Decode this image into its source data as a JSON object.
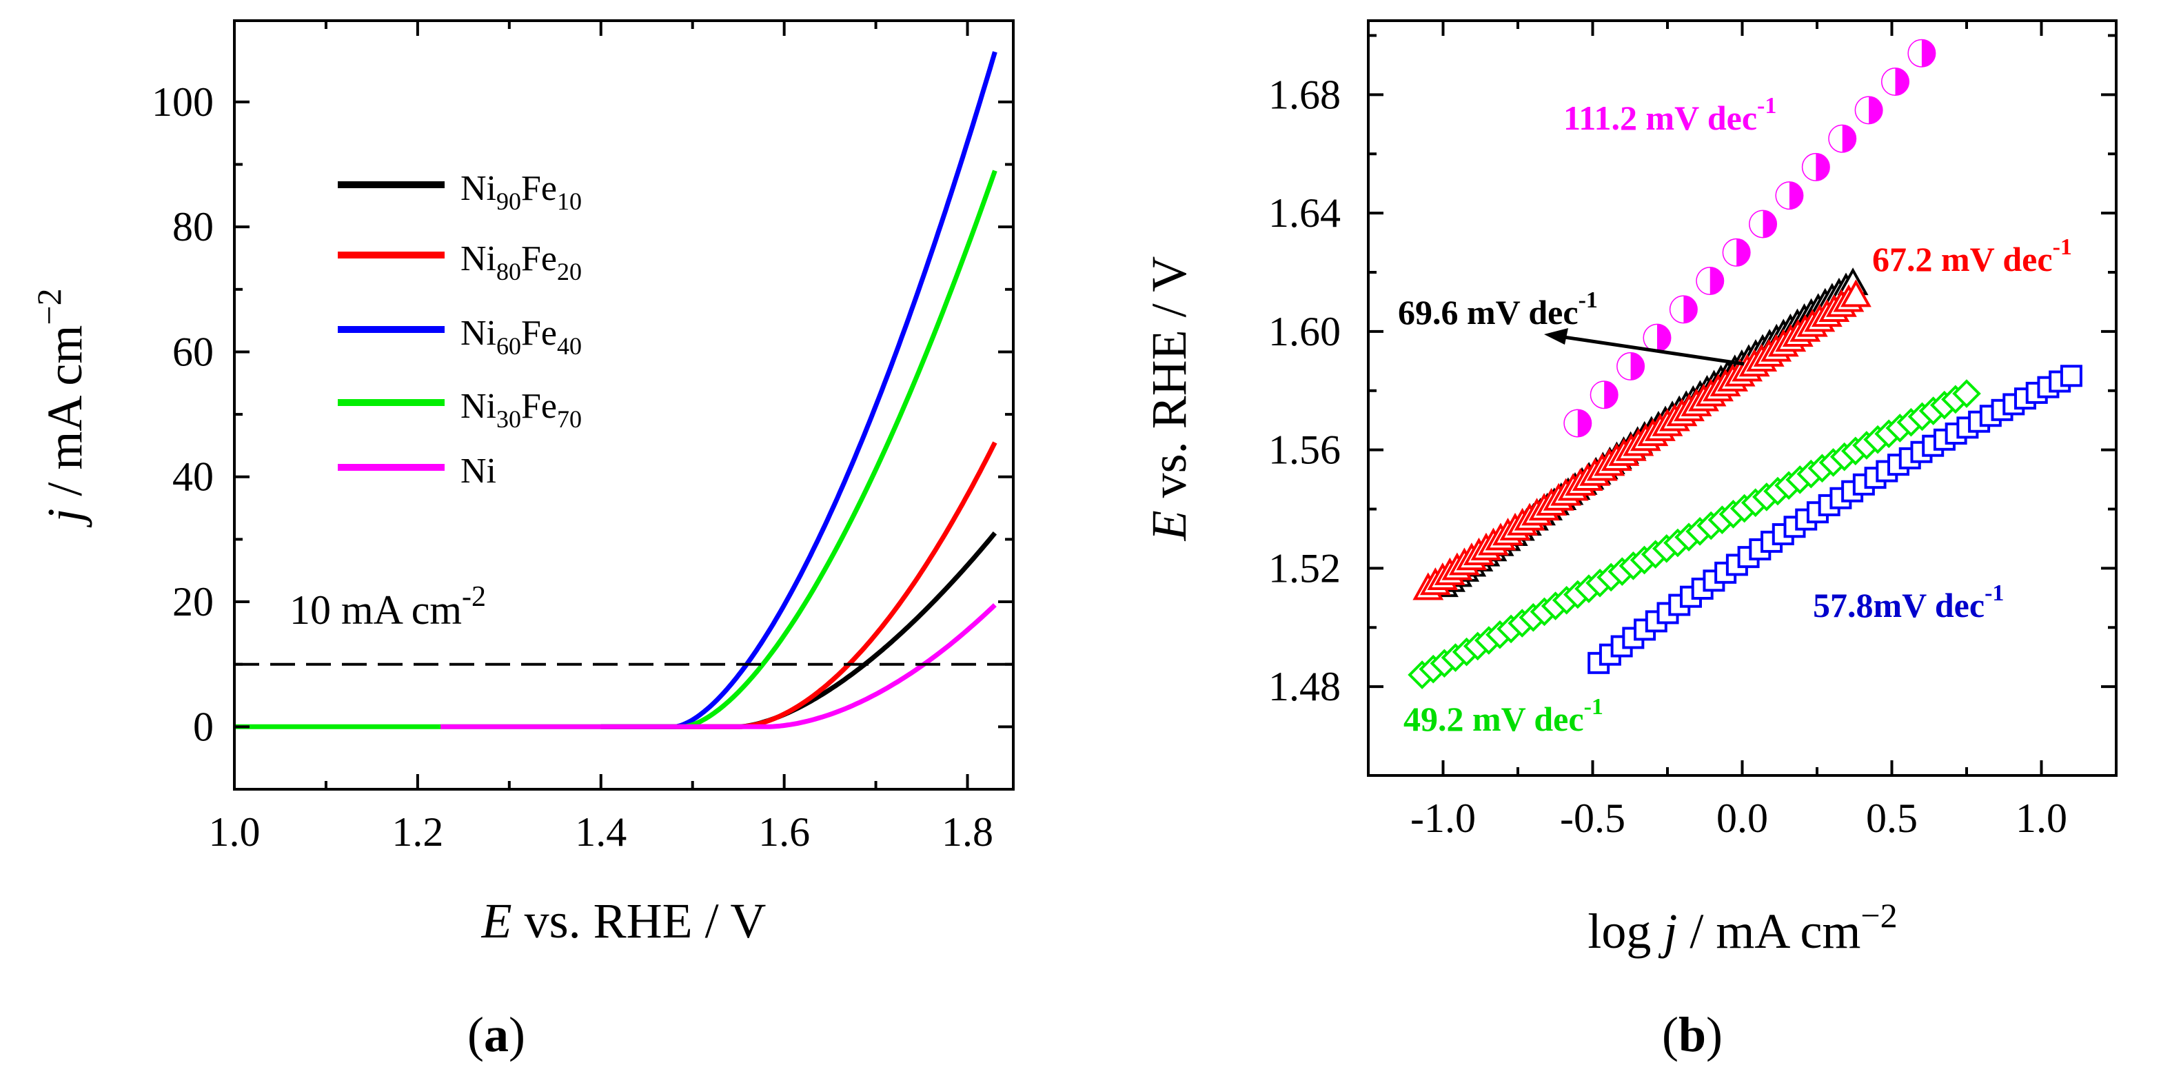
{
  "chart_data": [
    {
      "panel": "(a)",
      "type": "line",
      "panel_label_pre": "(",
      "panel_label_letter": "a",
      "panel_label_post": ")",
      "xlim": [
        1.0,
        1.85
      ],
      "ylim": [
        -10,
        113
      ],
      "xticks": [
        1.0,
        1.2,
        1.4,
        1.6,
        1.8
      ],
      "xtick_labels": [
        "1.0",
        "1.2",
        "1.4",
        "1.6",
        "1.8"
      ],
      "yticks": [
        0,
        20,
        40,
        60,
        80,
        100
      ],
      "ytick_labels": [
        "0",
        "20",
        "40",
        "60",
        "80",
        "100"
      ],
      "xlabel": {
        "italic": "E",
        "rest": " vs. RHE / V"
      },
      "ylabel": {
        "italic": "j",
        "rest": " / mA cm",
        "sup": "−2"
      },
      "reference_line": {
        "y": 10,
        "label": "10 mA cm",
        "label_sup": "-2"
      },
      "legend_position": "upper-left",
      "series": [
        {
          "name": "Ni90Fe10",
          "base": "Ni",
          "sub1": "90",
          "mid": "Fe",
          "sub2": "10",
          "color": "#000000",
          "x_start": 1.4,
          "onset": 1.55,
          "end": 1.83,
          "j_end": 31,
          "exp": 1.6
        },
        {
          "name": "Ni80Fe20",
          "base": "Ni",
          "sub1": "80",
          "mid": "Fe",
          "sub2": "20",
          "color": "#ff0000",
          "x_start": 1.4,
          "onset": 1.55,
          "end": 1.83,
          "j_end": 45.5,
          "exp": 1.8
        },
        {
          "name": "Ni60Fe40",
          "base": "Ni",
          "sub1": "60",
          "mid": "Fe",
          "sub2": "40",
          "color": "#0000ff",
          "x_start": 1.4,
          "onset": 1.48,
          "end": 1.83,
          "j_end": 108,
          "exp": 1.6
        },
        {
          "name": "Ni30Fe70",
          "base": "Ni",
          "sub1": "30",
          "mid": "Fe",
          "sub2": "70",
          "color": "#00ee00",
          "x_start": 1.0,
          "onset": 1.49,
          "end": 1.83,
          "j_end": 89,
          "exp": 1.6
        },
        {
          "name": "Ni",
          "base": "Ni",
          "sub1": "",
          "mid": "",
          "sub2": "",
          "color": "#ff00ff",
          "x_start": 1.225,
          "onset": 1.58,
          "end": 1.83,
          "j_end": 19.5,
          "exp": 1.8
        }
      ]
    },
    {
      "panel": "(b)",
      "type": "scatter",
      "panel_label_pre": "(",
      "panel_label_letter": "b",
      "panel_label_post": ")",
      "xlim": [
        -1.25,
        1.25
      ],
      "ylim": [
        1.45,
        1.705
      ],
      "xticks": [
        -1.0,
        -0.5,
        0.0,
        0.5,
        1.0
      ],
      "xtick_labels": [
        "-1.0",
        "-0.5",
        "0.0",
        "0.5",
        "1.0"
      ],
      "yticks": [
        1.48,
        1.52,
        1.56,
        1.6,
        1.64,
        1.68
      ],
      "ytick_labels": [
        "1.48",
        "1.52",
        "1.56",
        "1.60",
        "1.64",
        "1.68"
      ],
      "xlabel": {
        "pre": "log ",
        "italic": "j",
        "rest": " / mA cm",
        "sup": "−2"
      },
      "ylabel": {
        "italic": "E",
        "rest": " vs. RHE / V"
      },
      "series": [
        {
          "name": "Ni90Fe10",
          "color": "#000000",
          "marker": "triangle",
          "x0": -1.0,
          "x1": 0.37,
          "y0": 1.514,
          "y1": 1.616,
          "n": 60
        },
        {
          "name": "Ni80Fe20",
          "color": "#ff0000",
          "marker": "triangle",
          "x0": -1.05,
          "x1": 0.38,
          "y0": 1.513,
          "y1": 1.612,
          "n": 60
        },
        {
          "name": "Ni60Fe40",
          "color": "#0000ff",
          "marker": "square",
          "x0": -0.48,
          "x1": 1.1,
          "y0": 1.488,
          "y1": 1.585,
          "n": 42
        },
        {
          "name": "Ni30Fe70",
          "color": "#00ee00",
          "marker": "diamond",
          "x0": -1.07,
          "x1": 0.75,
          "y0": 1.484,
          "y1": 1.579,
          "n": 50
        },
        {
          "name": "Ni",
          "color": "#ff00ff",
          "marker": "circle",
          "x0": -0.55,
          "x1": 0.6,
          "y0": 1.569,
          "y1": 1.694,
          "n": 14
        }
      ],
      "annotations": [
        {
          "name": "tafel-ni",
          "text": "111.2 mV dec",
          "sup": "-1",
          "color": "#ff00ff"
        },
        {
          "name": "tafel-ni80fe20",
          "text": "67.2 mV dec",
          "sup": "-1",
          "color": "#ff0000"
        },
        {
          "name": "tafel-ni90fe10",
          "text": "69.6 mV dec",
          "sup": "-1",
          "color": "#000000"
        },
        {
          "name": "tafel-ni60fe40",
          "text": "57.8mV dec",
          "sup": "-1",
          "color": "#0000cc"
        },
        {
          "name": "tafel-ni30fe70",
          "text": "49.2 mV dec",
          "sup": "-1",
          "color": "#00dd00"
        }
      ]
    }
  ]
}
